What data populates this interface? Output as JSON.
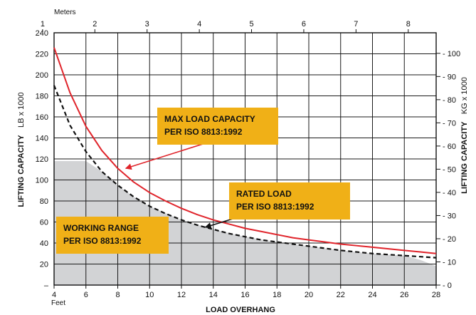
{
  "chart_data": {
    "type": "line",
    "x": [
      4,
      5,
      6,
      7,
      8,
      9,
      10,
      11,
      12,
      13,
      14,
      15,
      16,
      17,
      18,
      19,
      20,
      21,
      22,
      23,
      24,
      25,
      26,
      27,
      28
    ],
    "series": [
      {
        "name": "MAX LOAD CAPACITY PER ISO 8813:1992",
        "color": "#e0242b",
        "style": "solid",
        "values": [
          226,
          183,
          151,
          128,
          111,
          98,
          88,
          80,
          73,
          67,
          62,
          58,
          54,
          51,
          48,
          45,
          43,
          41,
          39,
          37.5,
          36,
          34.5,
          33,
          31.5,
          30
        ]
      },
      {
        "name": "RATED LOAD PER ISO 8813:1992",
        "color": "#111111",
        "style": "dashed",
        "values": [
          190,
          152,
          127,
          108,
          95,
          84,
          75,
          68,
          62,
          57,
          53,
          49,
          46,
          43,
          41,
          39,
          37,
          35,
          33,
          31.5,
          30,
          29,
          28,
          27,
          26
        ]
      }
    ],
    "area": {
      "name": "WORKING RANGE PER ISO 8813:1992",
      "color": "#d2d3d5",
      "x": [
        4,
        6,
        7,
        8,
        9,
        10,
        12,
        14,
        16,
        18,
        20,
        22,
        24,
        26,
        27,
        28
      ],
      "values": [
        118,
        118,
        108,
        95,
        84,
        75,
        62,
        53,
        46,
        41,
        37,
        33,
        30,
        28,
        24,
        18
      ]
    },
    "xlabel": "LOAD OVERHANG",
    "x_unit": "Feet",
    "xlim": [
      4,
      28
    ],
    "xticks": [
      4,
      6,
      8,
      10,
      12,
      14,
      16,
      18,
      20,
      22,
      24,
      26,
      28
    ],
    "x2_unit": "Meters",
    "x2ticks": [
      1,
      2,
      3,
      4,
      5,
      6,
      7,
      8
    ],
    "ylabel": "LIFTING CAPACITY",
    "y_unit": "LB x 1000",
    "ylim": [
      0,
      240
    ],
    "yticks": [
      20,
      40,
      60,
      80,
      100,
      120,
      140,
      160,
      180,
      200,
      220,
      240
    ],
    "y_zero_label": "–",
    "y2label": "LIFTING CAPACITY",
    "y2_unit": "KG x 1000",
    "y2ticks": [
      0,
      10,
      20,
      30,
      40,
      50,
      60,
      70,
      80,
      90,
      100
    ],
    "grid": true,
    "callouts": [
      {
        "lines": [
          "MAX LOAD CAPACITY",
          "PER ISO 8813:1992"
        ],
        "box_color": "#f0b017",
        "arrow_color": "#e0242b",
        "points_to": [
          8.5,
          111
        ]
      },
      {
        "lines": [
          "RATED LOAD",
          "PER ISO 8813:1992"
        ],
        "box_color": "#f0b017",
        "arrow_color": "#111111",
        "points_to": [
          13.5,
          55
        ]
      },
      {
        "lines": [
          "WORKING RANGE",
          "PER ISO 8813:1992"
        ],
        "box_color": "#f0b017"
      }
    ]
  }
}
